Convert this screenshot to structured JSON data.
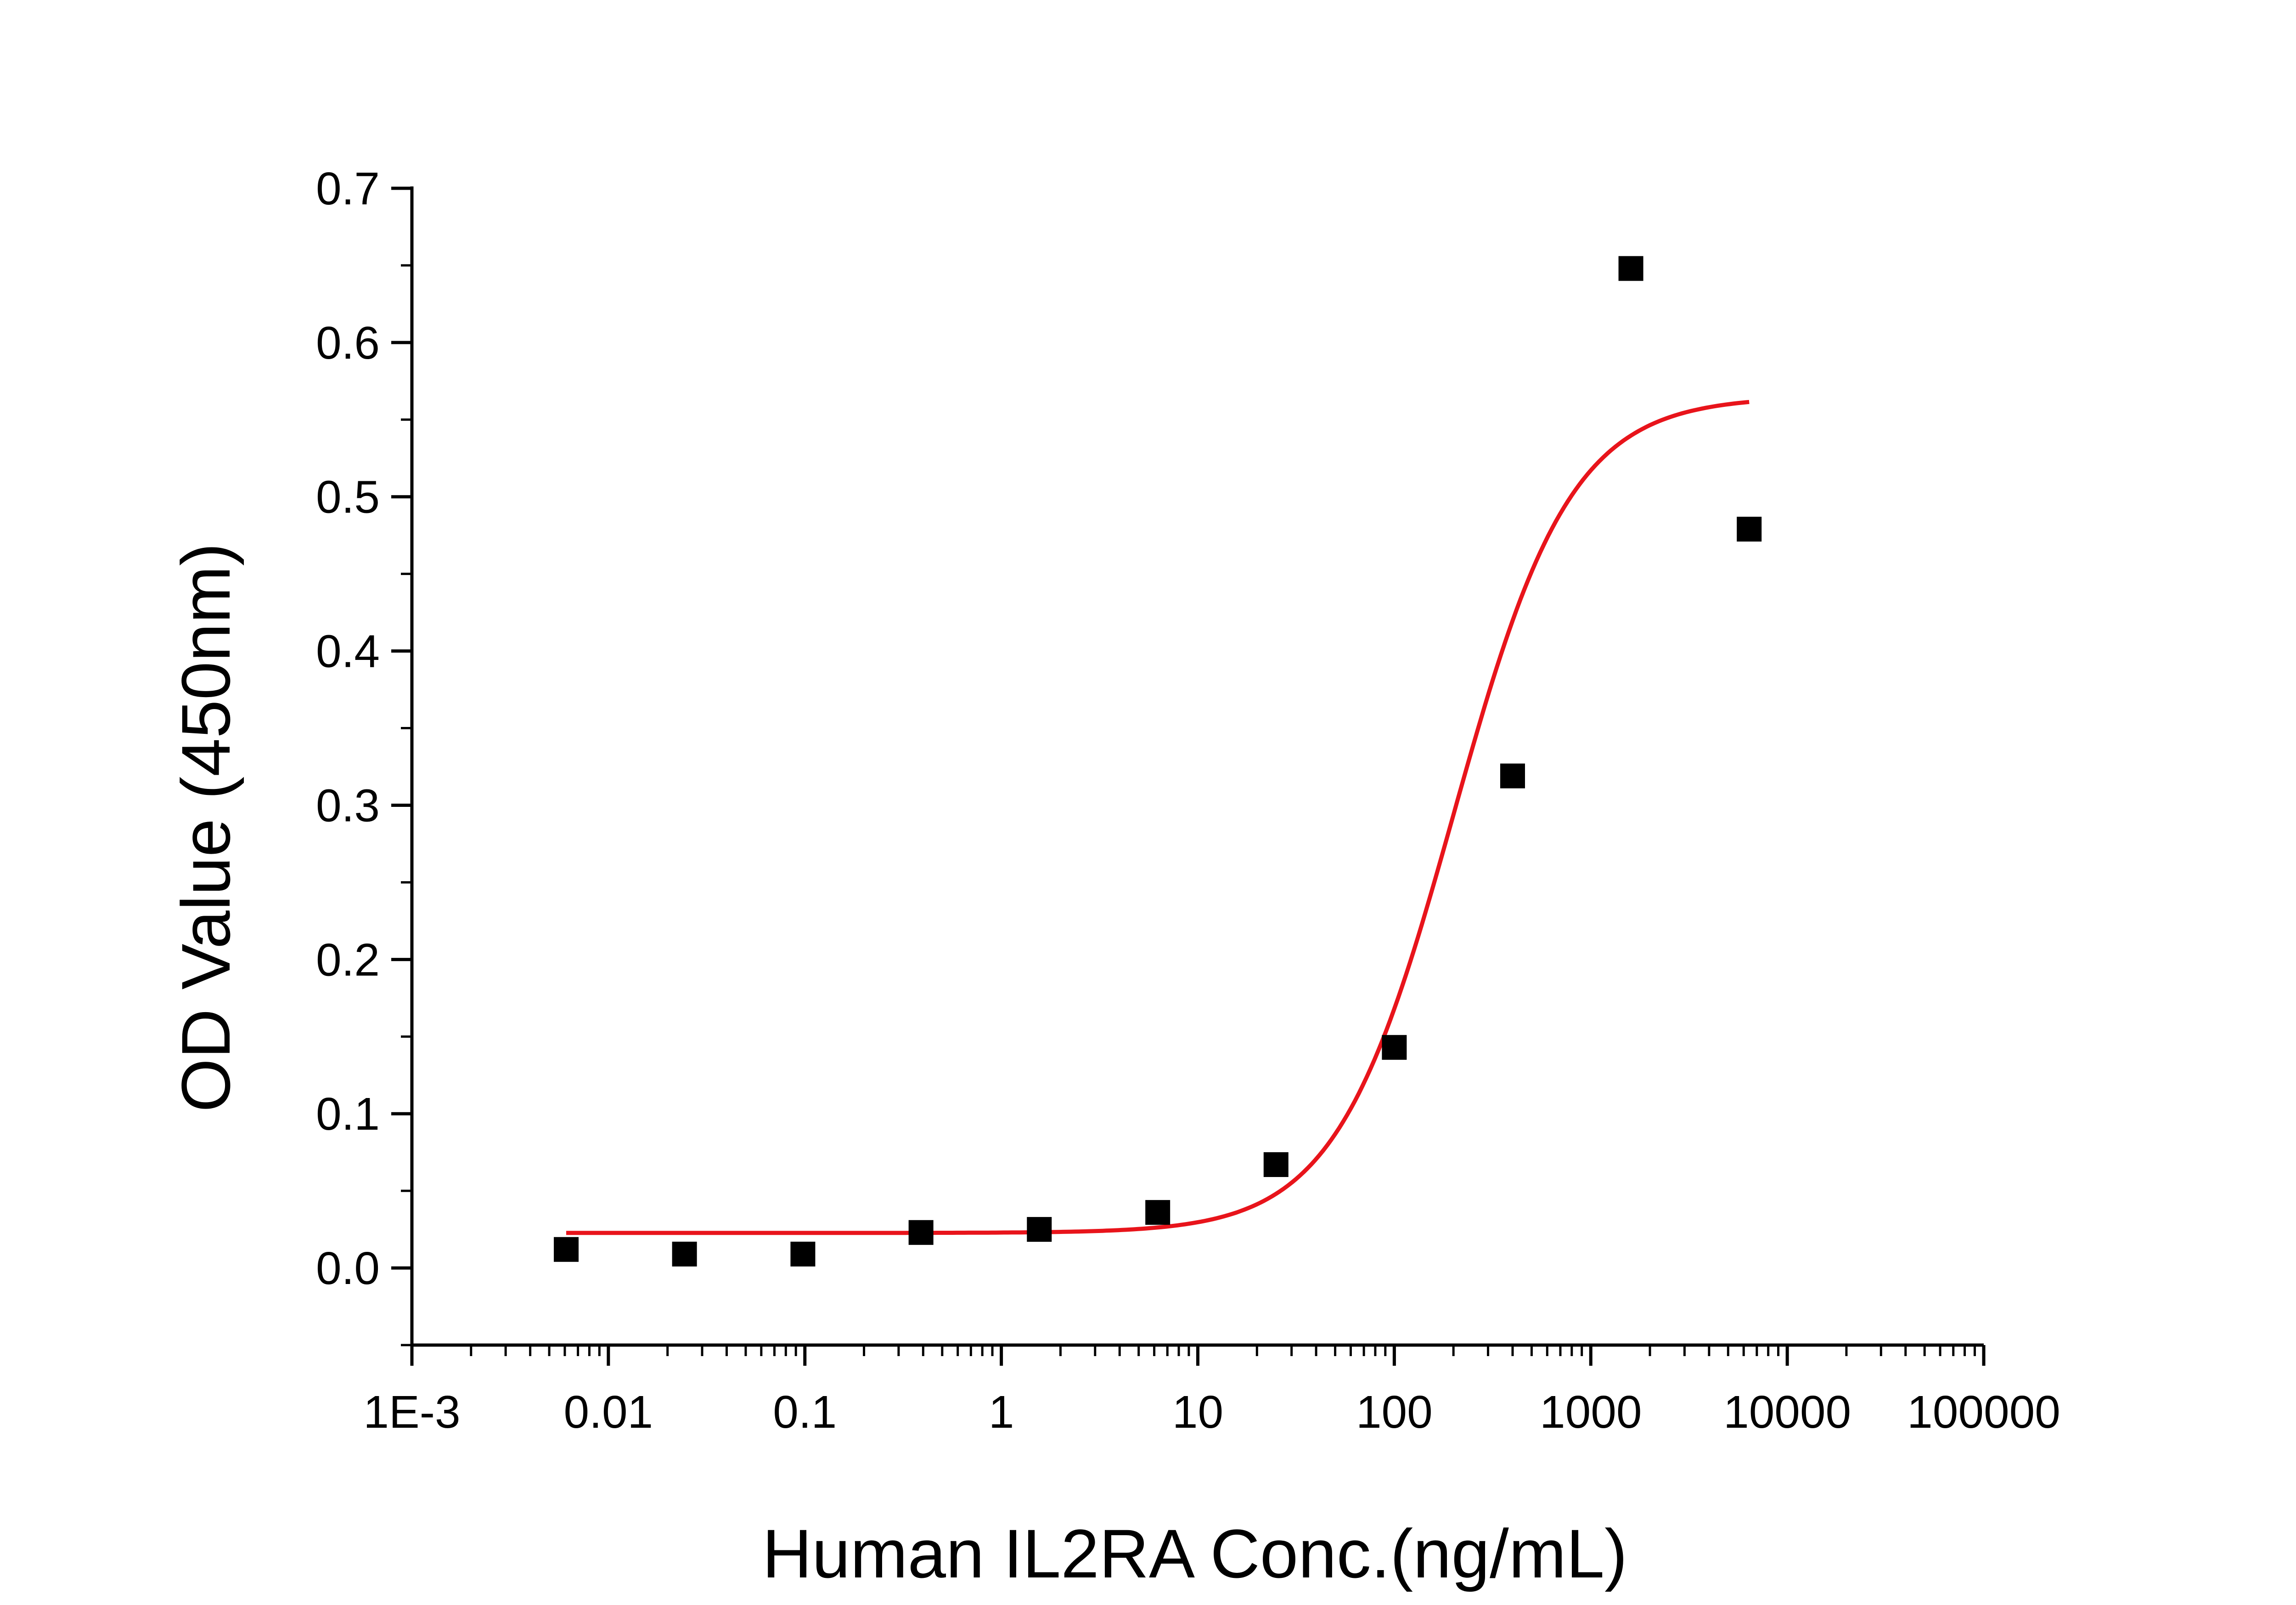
{
  "chart_data": {
    "type": "scatter",
    "title": "",
    "xlabel": "Human IL2RA Conc.(ng/mL)",
    "ylabel": "OD Value (450nm)",
    "x_scale": "log",
    "xlim": [
      0.001,
      100000
    ],
    "ylim": [
      -0.05,
      0.7
    ],
    "x_ticks": [
      0.001,
      0.01,
      0.1,
      1,
      10,
      100,
      1000,
      10000,
      100000
    ],
    "x_tick_labels": [
      "1E-3",
      "0.01",
      "0.1",
      "1",
      "10",
      "100",
      "1000",
      "10000",
      "100000"
    ],
    "y_ticks": [
      0.0,
      0.1,
      0.2,
      0.3,
      0.4,
      0.5,
      0.6,
      0.7
    ],
    "y_tick_labels": [
      "0.0",
      "0.1",
      "0.2",
      "0.3",
      "0.4",
      "0.5",
      "0.6",
      "0.7"
    ],
    "grid": false,
    "legend": "none",
    "series": [
      {
        "kind": "points",
        "marker": "square",
        "color": "#000000",
        "x": [
          0.0061,
          0.0244,
          0.0977,
          0.39,
          1.56,
          6.25,
          25,
          100,
          400,
          1600,
          6400
        ],
        "y": [
          0.012,
          0.009,
          0.009,
          0.023,
          0.025,
          0.036,
          0.067,
          0.143,
          0.319,
          0.648,
          0.479
        ]
      },
      {
        "kind": "fit-curve",
        "color": "#e8141b",
        "x_range": [
          0.0061,
          6400
        ],
        "bottom": 0.0227,
        "top": 0.565,
        "ec50": 200,
        "hill": 1.45
      }
    ]
  }
}
